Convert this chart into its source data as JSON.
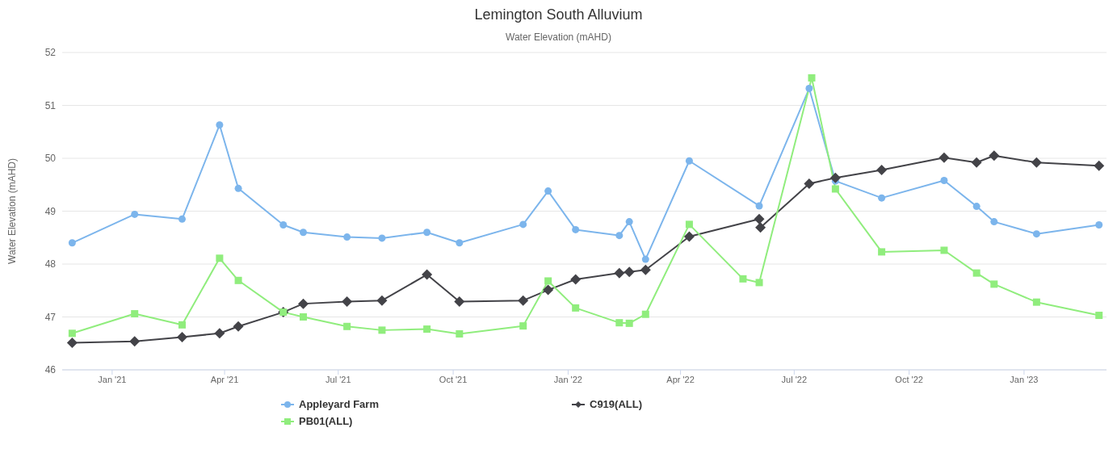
{
  "chart_data": {
    "type": "line",
    "title": "Lemington South Alluvium",
    "subtitle": "Water Elevation (mAHD)",
    "ylabel": "Water Elevation (mAHD)",
    "xlim": [
      "2020-11-22",
      "2023-03-08"
    ],
    "xticks": [
      {
        "value": "2021-01-01",
        "label": "Jan '21"
      },
      {
        "value": "2021-04-01",
        "label": "Apr '21"
      },
      {
        "value": "2021-07-01",
        "label": "Jul '21"
      },
      {
        "value": "2021-10-01",
        "label": "Oct '21"
      },
      {
        "value": "2022-01-01",
        "label": "Jan '22"
      },
      {
        "value": "2022-04-01",
        "label": "Apr '22"
      },
      {
        "value": "2022-07-01",
        "label": "Jul '22"
      },
      {
        "value": "2022-10-01",
        "label": "Oct '22"
      },
      {
        "value": "2023-01-01",
        "label": "Jan '23"
      }
    ],
    "ylim": [
      46,
      52
    ],
    "yticks": [
      46,
      47,
      48,
      49,
      50,
      51,
      52
    ],
    "grid": "y",
    "legend": "bottom",
    "line_style": "solid",
    "series": [
      {
        "name": "Appleyard Farm",
        "color": "#7cb5ec",
        "marker": "circle",
        "x": [
          "2020-11-30",
          "2021-01-19",
          "2021-02-26",
          "2021-03-28",
          "2021-04-12",
          "2021-05-18",
          "2021-06-03",
          "2021-07-08",
          "2021-08-05",
          "2021-09-10",
          "2021-10-06",
          "2021-11-26",
          "2021-12-16",
          "2022-01-07",
          "2022-02-11",
          "2022-02-19",
          "2022-03-04",
          "2022-04-08",
          "2022-06-03",
          "2022-07-13",
          "2022-08-03",
          "2022-09-09",
          "2022-10-29",
          "2022-11-24",
          "2022-12-08",
          "2023-01-11",
          "2023-03-02"
        ],
        "values": [
          48.4,
          48.94,
          48.85,
          50.63,
          49.43,
          48.74,
          48.6,
          48.51,
          48.49,
          48.6,
          48.4,
          48.75,
          49.38,
          48.65,
          48.54,
          48.8,
          48.09,
          49.95,
          49.1,
          51.32,
          49.57,
          49.25,
          49.58,
          49.09,
          48.8,
          48.57,
          48.74
        ]
      },
      {
        "name": "C919(ALL)",
        "color": "#434348",
        "marker": "diamond",
        "x": [
          "2020-11-30",
          "2021-01-19",
          "2021-02-26",
          "2021-03-28",
          "2021-04-12",
          "2021-05-18",
          "2021-06-03",
          "2021-07-08",
          "2021-08-05",
          "2021-09-10",
          "2021-10-06",
          "2021-11-26",
          "2021-12-16",
          "2022-01-07",
          "2022-02-11",
          "2022-02-19",
          "2022-03-04",
          "2022-04-08",
          "2022-06-03",
          "2022-06-04",
          "2022-07-13",
          "2022-08-03",
          "2022-09-09",
          "2022-10-29",
          "2022-11-24",
          "2022-12-08",
          "2023-01-11",
          "2023-03-02"
        ],
        "values": [
          46.51,
          46.54,
          46.62,
          46.69,
          46.82,
          47.09,
          47.25,
          47.29,
          47.31,
          47.8,
          47.29,
          47.31,
          47.51,
          47.71,
          47.83,
          47.85,
          47.89,
          48.52,
          48.85,
          48.69,
          49.52,
          49.63,
          49.78,
          50.01,
          49.92,
          50.05,
          49.92,
          49.86
        ]
      },
      {
        "name": "PB01(ALL)",
        "color": "#90ed7d",
        "marker": "square",
        "x": [
          "2020-11-30",
          "2021-01-19",
          "2021-02-26",
          "2021-03-28",
          "2021-04-12",
          "2021-05-18",
          "2021-06-03",
          "2021-07-08",
          "2021-08-05",
          "2021-09-10",
          "2021-10-06",
          "2021-11-26",
          "2021-12-16",
          "2022-01-07",
          "2022-02-11",
          "2022-02-19",
          "2022-03-04",
          "2022-04-08",
          "2022-05-21",
          "2022-06-03",
          "2022-07-15",
          "2022-08-03",
          "2022-09-09",
          "2022-10-29",
          "2022-11-24",
          "2022-12-08",
          "2023-01-11",
          "2023-03-02"
        ],
        "values": [
          46.69,
          47.06,
          46.85,
          48.11,
          47.69,
          47.09,
          47.0,
          46.82,
          46.75,
          46.77,
          46.68,
          46.83,
          47.68,
          47.17,
          46.89,
          46.88,
          47.05,
          48.75,
          47.72,
          47.65,
          51.52,
          49.42,
          48.23,
          48.26,
          47.83,
          47.62,
          47.28,
          47.03
        ]
      }
    ]
  }
}
